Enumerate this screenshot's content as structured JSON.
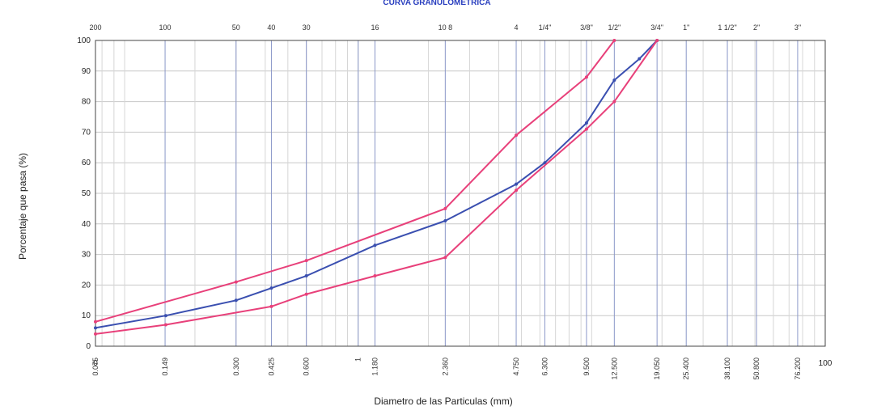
{
  "chart_data": {
    "type": "line",
    "title": "CURVA GRANULOMETRICA",
    "xlabel": "Diametro de las Particulas (mm)",
    "ylabel": "Porcentaje que pasa (%)",
    "x_scale": "log",
    "xlim": [
      0.075,
      100
    ],
    "ylim": [
      0,
      100
    ],
    "yticks": [
      0,
      10,
      20,
      30,
      40,
      50,
      60,
      70,
      80,
      90,
      100
    ],
    "grid": true,
    "axis_end_labels": {
      "left": "0",
      "right": "100"
    },
    "x_tick_labels": [
      {
        "x": 0.075,
        "label": "0.075"
      },
      {
        "x": 0.149,
        "label": "0.149"
      },
      {
        "x": 0.3,
        "label": "0.300"
      },
      {
        "x": 0.425,
        "label": "0.425"
      },
      {
        "x": 0.6,
        "label": "0.600"
      },
      {
        "x": 1,
        "label": "1"
      },
      {
        "x": 1.18,
        "label": "1.180"
      },
      {
        "x": 2.36,
        "label": "2.360"
      },
      {
        "x": 4.75,
        "label": "4.750"
      },
      {
        "x": 6.3,
        "label": "6.300"
      },
      {
        "x": 9.5,
        "label": "9.500"
      },
      {
        "x": 12.5,
        "label": "12.500"
      },
      {
        "x": 19.05,
        "label": "19.050"
      },
      {
        "x": 25.4,
        "label": "25.400"
      },
      {
        "x": 38.1,
        "label": "38.100"
      },
      {
        "x": 50.8,
        "label": "50.800"
      },
      {
        "x": 76.2,
        "label": "76.200"
      }
    ],
    "sieve_labels": [
      {
        "x": 0.075,
        "label": "200"
      },
      {
        "x": 0.149,
        "label": "100"
      },
      {
        "x": 0.3,
        "label": "50"
      },
      {
        "x": 0.425,
        "label": "40"
      },
      {
        "x": 0.6,
        "label": "30"
      },
      {
        "x": 1.18,
        "label": "16"
      },
      {
        "x": 2.36,
        "label": "10  8"
      },
      {
        "x": 4.75,
        "label": "4"
      },
      {
        "x": 6.3,
        "label": "1/4\""
      },
      {
        "x": 9.5,
        "label": "3/8\""
      },
      {
        "x": 12.5,
        "label": "1/2\""
      },
      {
        "x": 19.05,
        "label": "3/4\""
      },
      {
        "x": 25.4,
        "label": "1\""
      },
      {
        "x": 38.1,
        "label": "1 1/2\""
      },
      {
        "x": 50.8,
        "label": "2\""
      },
      {
        "x": 76.2,
        "label": "3\""
      }
    ],
    "series": [
      {
        "role": "upper-limit",
        "color": "#e8407a",
        "x": [
          0.075,
          0.3,
          0.6,
          2.36,
          4.75,
          9.5,
          12.5
        ],
        "y": [
          8,
          21,
          28,
          45,
          69,
          88,
          100
        ]
      },
      {
        "role": "gradation",
        "color": "#3a4fb0",
        "x": [
          0.075,
          0.15,
          0.3,
          0.425,
          0.6,
          1.18,
          2.36,
          4.75,
          6.3,
          9.5,
          12.5,
          16,
          19.05
        ],
        "y": [
          6,
          10,
          15,
          19,
          23,
          33,
          41,
          53,
          60,
          73,
          87,
          94,
          100
        ]
      },
      {
        "role": "lower-limit",
        "color": "#e8407a",
        "x": [
          0.075,
          0.15,
          0.425,
          0.6,
          1.18,
          2.36,
          4.75,
          9.5,
          12.5,
          19.05
        ],
        "y": [
          4,
          7,
          13,
          17,
          23,
          29,
          51,
          71,
          80,
          100
        ]
      }
    ]
  }
}
